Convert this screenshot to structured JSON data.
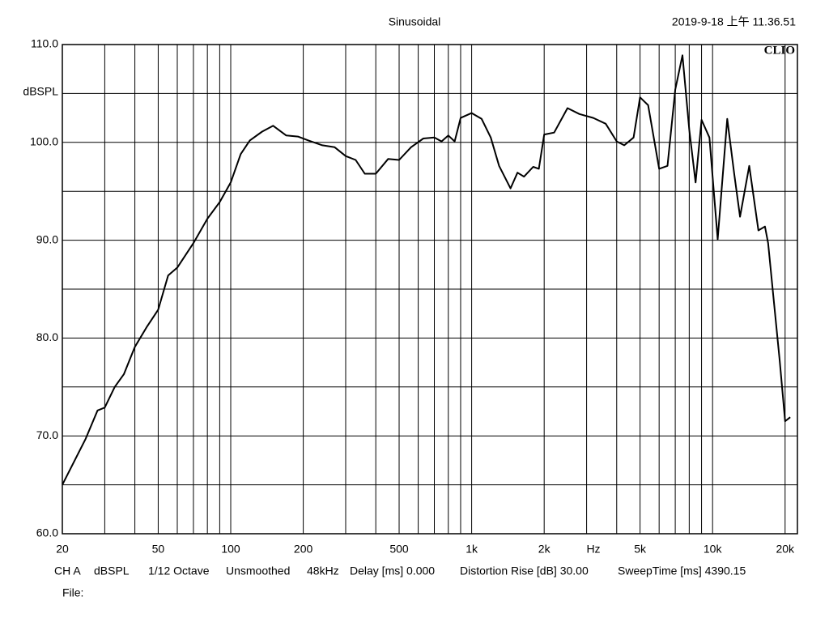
{
  "chart_data": {
    "type": "line",
    "title": "Sinusoidal",
    "timestamp": "2019-9-18 上午 11.36.51",
    "brand": "CLIO",
    "y_label": "dBSPL",
    "x_label": "Hz",
    "log_x": true,
    "grid": true,
    "color": "#000000",
    "x": [
      20,
      25,
      28,
      30,
      33,
      36,
      40,
      45,
      50,
      55,
      60,
      70,
      80,
      90,
      100,
      110,
      120,
      135,
      150,
      170,
      190,
      210,
      240,
      270,
      300,
      330,
      360,
      400,
      450,
      500,
      560,
      630,
      700,
      750,
      800,
      850,
      900,
      1000,
      1100,
      1200,
      1300,
      1450,
      1550,
      1650,
      1800,
      1900,
      2000,
      2200,
      2500,
      2800,
      3200,
      3600,
      4000,
      4300,
      4700,
      5000,
      5400,
      6000,
      6500,
      7000,
      7500,
      8000,
      8500,
      9000,
      9700,
      10500,
      11500,
      12300,
      13000,
      14200,
      15500,
      16500,
      17000,
      19000,
      20000,
      21000
    ],
    "values": [
      65.0,
      69.7,
      72.6,
      72.9,
      75.0,
      76.3,
      79.1,
      81.2,
      82.9,
      86.4,
      87.2,
      89.7,
      92.2,
      93.9,
      95.9,
      98.8,
      100.2,
      101.1,
      101.7,
      100.7,
      100.6,
      100.2,
      99.7,
      99.5,
      98.6,
      98.2,
      96.8,
      96.8,
      98.3,
      98.2,
      99.5,
      100.4,
      100.5,
      100.1,
      100.7,
      100.1,
      102.5,
      103.0,
      102.4,
      100.5,
      97.6,
      95.3,
      96.9,
      96.5,
      97.5,
      97.3,
      100.8,
      101.0,
      103.5,
      102.9,
      102.5,
      101.9,
      100.1,
      99.7,
      100.5,
      104.6,
      103.8,
      97.3,
      97.6,
      105.4,
      108.9,
      101.3,
      95.9,
      102.3,
      100.5,
      90.1,
      102.4,
      96.8,
      92.4,
      97.6,
      91.0,
      91.4,
      89.7,
      77.7,
      71.5,
      71.9
    ],
    "xlim": [
      20,
      22500
    ],
    "ylim": [
      60,
      110
    ],
    "xticks": [
      20,
      50,
      100,
      200,
      500,
      {
        "value": 1000,
        "label": "1k"
      },
      {
        "value": 2000,
        "label": "2k"
      },
      {
        "value": 5000,
        "label": "5k"
      },
      {
        "value": 10000,
        "label": "10k"
      },
      {
        "value": 20000,
        "label": "20k"
      }
    ],
    "x_minor_grid": [
      30,
      40,
      60,
      70,
      80,
      90,
      300,
      400,
      600,
      700,
      800,
      900,
      3000,
      4000,
      6000,
      7000,
      8000,
      9000
    ],
    "yticks": [
      {
        "value": 60,
        "label": "60.0"
      },
      {
        "value": 70,
        "label": "70.0"
      },
      {
        "value": 80,
        "label": "80.0"
      },
      {
        "value": 90,
        "label": "90.0"
      },
      {
        "value": 100,
        "label": "100.0"
      },
      {
        "value": 110,
        "label": "110.0"
      }
    ],
    "y_minor_grid": [
      65,
      75,
      85,
      95,
      105
    ]
  },
  "footer": [
    "CH A",
    "dBSPL",
    "1/12 Octave",
    "Unsmoothed",
    "48kHz",
    "Delay [ms] 0.000",
    "Distortion Rise [dB] 30.00",
    "SweepTime [ms] 4390.15"
  ],
  "file_label": "File:"
}
